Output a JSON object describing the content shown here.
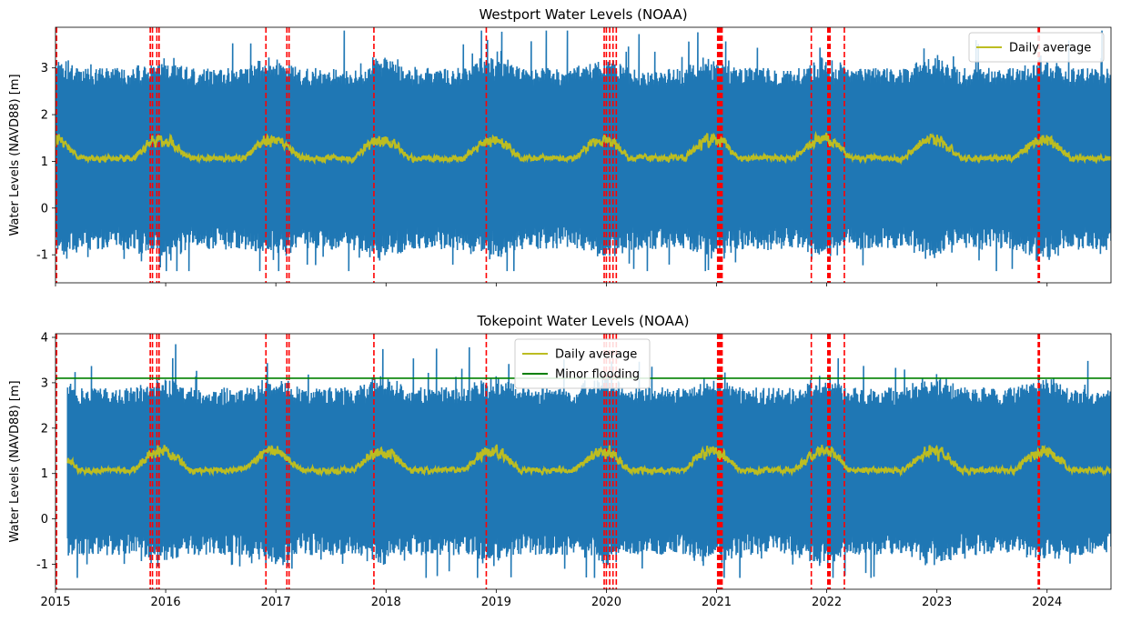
{
  "chart_data": [
    {
      "type": "line",
      "title": "Westport Water Levels (NOAA)",
      "xlabel": "",
      "ylabel": "Water Levels (NAVD88) [m]",
      "xlim": [
        2015.0,
        2024.58
      ],
      "ylim": [
        -1.6,
        3.87
      ],
      "yticks": [
        -1,
        0,
        1,
        2,
        3
      ],
      "xticks": [
        2015,
        2016,
        2017,
        2018,
        2019,
        2020,
        2021,
        2022,
        2023,
        2024
      ],
      "show_xticklabels": false,
      "grid": false,
      "legend": {
        "placement": "upper right",
        "entries": [
          "Daily average"
        ]
      },
      "series": [
        {
          "name": "",
          "kind": "hourly_band",
          "color": "#1f77b4",
          "x_range": [
            2015.0,
            2024.58
          ],
          "typical_upper": [
            2.6,
            3.0
          ],
          "typical_lower": [
            -0.9,
            -0.4
          ],
          "peak_upper": 3.8,
          "peak_lower": -1.35
        },
        {
          "name": "Daily average",
          "kind": "daily",
          "color": "#bcbd22",
          "x_range": [
            2015.0,
            2024.58
          ],
          "baseline": 1.07,
          "winter_peak": 0.55,
          "max": 1.9,
          "min": 0.78
        }
      ],
      "vlines": {
        "color": "#ff0000",
        "style": "dashed",
        "x": [
          2015.01,
          2015.86,
          2015.88,
          2015.92,
          2015.94,
          2016.91,
          2017.1,
          2017.12,
          2017.89,
          2018.91,
          2019.98,
          2020.0,
          2020.03,
          2020.06,
          2020.09,
          2021.01,
          2021.02,
          2021.03,
          2021.04,
          2021.05,
          2021.86,
          2022.01,
          2022.02,
          2022.03,
          2022.16,
          2023.92,
          2023.93
        ]
      }
    },
    {
      "type": "line",
      "title": "Tokepoint Water Levels (NOAA)",
      "xlabel": "",
      "ylabel": "Water Levels (NAVD88) [m]",
      "xlim": [
        2015.0,
        2024.58
      ],
      "ylim": [
        -1.55,
        4.08
      ],
      "yticks": [
        -1,
        0,
        1,
        2,
        3,
        4
      ],
      "xticks": [
        2015,
        2016,
        2017,
        2018,
        2019,
        2020,
        2021,
        2022,
        2023,
        2024
      ],
      "xticklabels": [
        "2015",
        "2016",
        "2017",
        "2018",
        "2019",
        "2020",
        "2021",
        "2022",
        "2023",
        "2024"
      ],
      "show_xticklabels": true,
      "grid": false,
      "legend": {
        "placement": "upper center",
        "entries": [
          "Daily average",
          "Minor flooding"
        ]
      },
      "series": [
        {
          "name": "",
          "kind": "hourly_band",
          "color": "#1f77b4",
          "x_range": [
            2015.11,
            2024.58
          ],
          "typical_upper": [
            2.5,
            2.9
          ],
          "typical_lower": [
            -0.8,
            -0.3
          ],
          "peak_upper": 3.85,
          "peak_lower": -1.3
        },
        {
          "name": "Daily average",
          "kind": "daily",
          "color": "#bcbd22",
          "x_range": [
            2015.11,
            2024.58
          ],
          "baseline": 1.07,
          "winter_peak": 0.6,
          "max": 2.1,
          "min": 0.8
        },
        {
          "name": "Minor flooding",
          "kind": "hline",
          "color": "#008000",
          "y": 3.1
        }
      ],
      "vlines": {
        "color": "#ff0000",
        "style": "dashed",
        "x": [
          2015.01,
          2015.86,
          2015.88,
          2015.92,
          2015.94,
          2016.91,
          2017.1,
          2017.12,
          2017.89,
          2018.91,
          2019.98,
          2020.0,
          2020.03,
          2020.06,
          2020.09,
          2021.01,
          2021.02,
          2021.03,
          2021.04,
          2021.05,
          2021.86,
          2022.01,
          2022.02,
          2022.03,
          2022.16,
          2023.92,
          2023.93
        ]
      }
    }
  ]
}
